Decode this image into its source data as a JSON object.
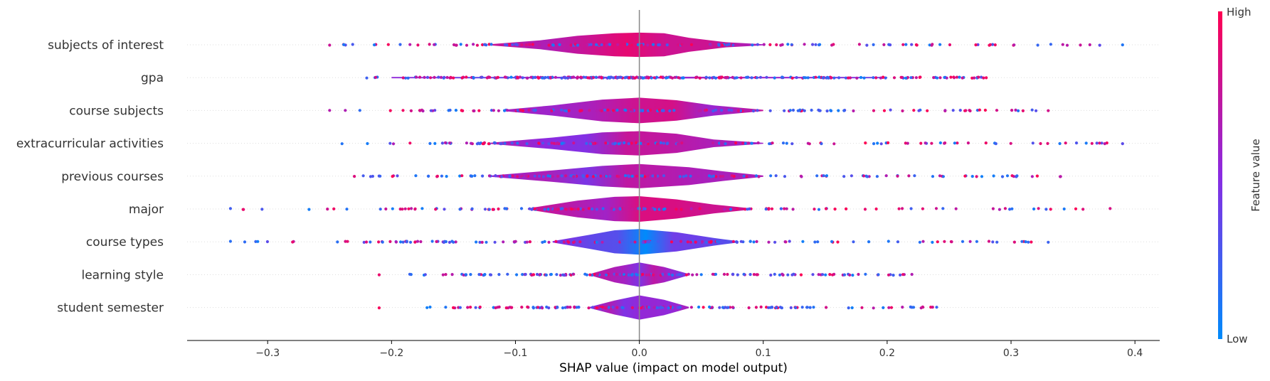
{
  "chart_data": {
    "type": "violin",
    "xlabel": "SHAP value (impact on model output)",
    "xlim": [
      -0.365,
      0.42
    ],
    "xticks": [
      -0.3,
      -0.2,
      -0.1,
      0.0,
      0.1,
      0.2,
      0.3,
      0.4
    ],
    "xtick_labels": [
      "−0.3",
      "−0.2",
      "−0.1",
      "0.0",
      "0.1",
      "0.2",
      "0.3",
      "0.4"
    ],
    "grid": "horizontal dotted per feature",
    "colorbar": {
      "title": "Feature value",
      "high_label": "High",
      "low_label": "Low",
      "high_color": "#ff0052",
      "low_color": "#008bfb"
    },
    "features": [
      {
        "name": "subjects of interest",
        "range": [
          -0.25,
          0.39
        ],
        "density": [
          [
            -0.12,
            0.05
          ],
          [
            -0.08,
            0.35
          ],
          [
            -0.05,
            0.7
          ],
          [
            -0.02,
            0.9
          ],
          [
            0.0,
            0.95
          ],
          [
            0.02,
            0.9
          ],
          [
            0.04,
            0.55
          ],
          [
            0.07,
            0.2
          ],
          [
            0.1,
            0.04
          ]
        ],
        "color_trend": "mixed-magenta"
      },
      {
        "name": "gpa",
        "range": [
          -0.22,
          0.28
        ],
        "density": [
          [
            -0.2,
            0.05
          ],
          [
            -0.1,
            0.06
          ],
          [
            0.0,
            0.07
          ],
          [
            0.1,
            0.06
          ],
          [
            0.2,
            0.05
          ]
        ],
        "color_trend": "mixed"
      },
      {
        "name": "course subjects",
        "range": [
          -0.25,
          0.33
        ],
        "density": [
          [
            -0.11,
            0.05
          ],
          [
            -0.07,
            0.4
          ],
          [
            -0.03,
            0.85
          ],
          [
            0.0,
            1.0
          ],
          [
            0.03,
            0.8
          ],
          [
            0.06,
            0.4
          ],
          [
            0.1,
            0.05
          ]
        ],
        "color_trend": "mixed-magenta"
      },
      {
        "name": "extracurricular activities",
        "range": [
          -0.24,
          0.39
        ],
        "density": [
          [
            -0.12,
            0.05
          ],
          [
            -0.07,
            0.45
          ],
          [
            -0.03,
            0.85
          ],
          [
            0.0,
            0.95
          ],
          [
            0.03,
            0.75
          ],
          [
            0.06,
            0.3
          ],
          [
            0.1,
            0.04
          ]
        ],
        "color_trend": "mixed-purple"
      },
      {
        "name": "previous courses",
        "range": [
          -0.23,
          0.34
        ],
        "density": [
          [
            -0.12,
            0.05
          ],
          [
            -0.07,
            0.45
          ],
          [
            -0.03,
            0.8
          ],
          [
            0.0,
            0.95
          ],
          [
            0.04,
            0.7
          ],
          [
            0.07,
            0.35
          ],
          [
            0.1,
            0.05
          ]
        ],
        "color_trend": "mixed-purple"
      },
      {
        "name": "major",
        "range": [
          -0.33,
          0.38
        ],
        "density": [
          [
            -0.09,
            0.05
          ],
          [
            -0.05,
            0.65
          ],
          [
            -0.02,
            0.95
          ],
          [
            0.0,
            1.0
          ],
          [
            0.03,
            0.75
          ],
          [
            0.06,
            0.35
          ],
          [
            0.09,
            0.05
          ]
        ],
        "color_trend": "mixed-magenta"
      },
      {
        "name": "course types",
        "range": [
          -0.33,
          0.33
        ],
        "density": [
          [
            -0.07,
            0.05
          ],
          [
            -0.04,
            0.55
          ],
          [
            -0.02,
            0.9
          ],
          [
            0.0,
            1.0
          ],
          [
            0.03,
            0.75
          ],
          [
            0.06,
            0.3
          ],
          [
            0.08,
            0.05
          ]
        ],
        "color_trend": "mixed-blue"
      },
      {
        "name": "learning style",
        "range": [
          -0.21,
          0.22
        ],
        "density": [
          [
            -0.04,
            0.05
          ],
          [
            -0.02,
            0.6
          ],
          [
            0.0,
            0.95
          ],
          [
            0.02,
            0.6
          ],
          [
            0.04,
            0.05
          ]
        ],
        "color_trend": "purple"
      },
      {
        "name": "student semester",
        "range": [
          -0.21,
          0.24
        ],
        "density": [
          [
            -0.04,
            0.05
          ],
          [
            -0.02,
            0.55
          ],
          [
            0.0,
            0.95
          ],
          [
            0.02,
            0.6
          ],
          [
            0.04,
            0.05
          ]
        ],
        "color_trend": "purple"
      }
    ]
  }
}
